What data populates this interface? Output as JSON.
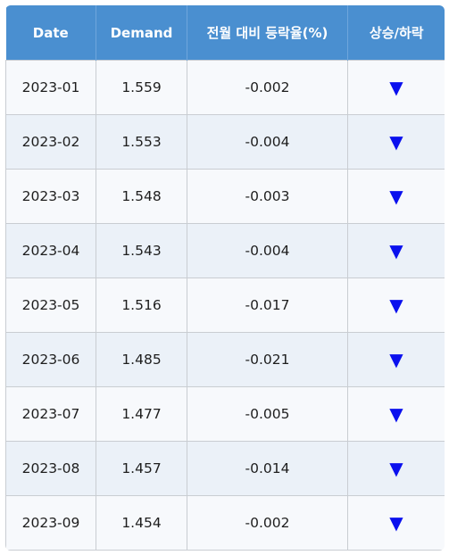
{
  "table": {
    "headers": [
      "Date",
      "Demand",
      "전월 대비 등락율(%)",
      "상승/하락"
    ],
    "rows": [
      {
        "date": "2023-01",
        "demand": "1.559",
        "change": "-0.002",
        "trend": "▼"
      },
      {
        "date": "2023-02",
        "demand": "1.553",
        "change": "-0.004",
        "trend": "▼"
      },
      {
        "date": "2023-03",
        "demand": "1.548",
        "change": "-0.003",
        "trend": "▼"
      },
      {
        "date": "2023-04",
        "demand": "1.543",
        "change": "-0.004",
        "trend": "▼"
      },
      {
        "date": "2023-05",
        "demand": "1.516",
        "change": "-0.017",
        "trend": "▼"
      },
      {
        "date": "2023-06",
        "demand": "1.485",
        "change": "-0.021",
        "trend": "▼"
      },
      {
        "date": "2023-07",
        "demand": "1.477",
        "change": "-0.005",
        "trend": "▼"
      },
      {
        "date": "2023-08",
        "demand": "1.457",
        "change": "-0.014",
        "trend": "▼"
      },
      {
        "date": "2023-09",
        "demand": "1.454",
        "change": "-0.002",
        "trend": "▼"
      }
    ]
  },
  "colors": {
    "header_bg": "#4a8fd0",
    "header_text": "#ffffff",
    "row_odd_bg": "#f7f9fc",
    "row_even_bg": "#ebf1f8",
    "down_arrow": "#0a10ee"
  },
  "icons": {
    "down_trend": "down-triangle-icon"
  }
}
